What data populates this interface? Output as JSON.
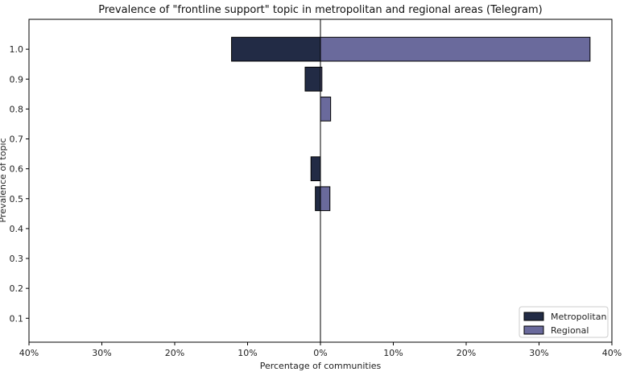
{
  "chart_data": {
    "type": "bar",
    "orientation": "horizontal-diverging",
    "title": "Prevalence of \"frontline support\" topic in metropolitan and regional areas (Telegram)",
    "xlabel": "Percentage of communities",
    "ylabel": "Prevalence of topic",
    "xlim": [
      -40,
      40
    ],
    "ylim": [
      0.02,
      1.1
    ],
    "x_ticks": [
      -40,
      -30,
      -20,
      -10,
      0,
      10,
      20,
      30,
      40
    ],
    "x_tick_labels": [
      "40%",
      "30%",
      "20%",
      "10%",
      "0%",
      "10%",
      "20%",
      "30%",
      "40%"
    ],
    "y_ticks": [
      0.1,
      0.2,
      0.3,
      0.4,
      0.5,
      0.6,
      0.7,
      0.8,
      0.9,
      1.0
    ],
    "y_tick_labels": [
      "0.1",
      "0.2",
      "0.3",
      "0.4",
      "0.5",
      "0.6",
      "0.7",
      "0.8",
      "0.9",
      "1.0"
    ],
    "bar_height": 0.08,
    "legend_position": "bottom-right",
    "series": [
      {
        "name": "Metropolitan",
        "color": "#222b45",
        "direction": "left",
        "points": [
          {
            "y": 1.0,
            "value": 12.2
          },
          {
            "y": 0.9,
            "value": 2.1
          },
          {
            "y": 0.6,
            "value": 1.3
          },
          {
            "y": 0.5,
            "value": 0.7
          }
        ]
      },
      {
        "name": "Regional",
        "color": "#6a6a9c",
        "direction": "right",
        "points": [
          {
            "y": 1.0,
            "value": 37.0
          },
          {
            "y": 0.9,
            "value": 0.2
          },
          {
            "y": 0.8,
            "value": 1.4
          },
          {
            "y": 0.5,
            "value": 1.3
          }
        ]
      }
    ]
  }
}
